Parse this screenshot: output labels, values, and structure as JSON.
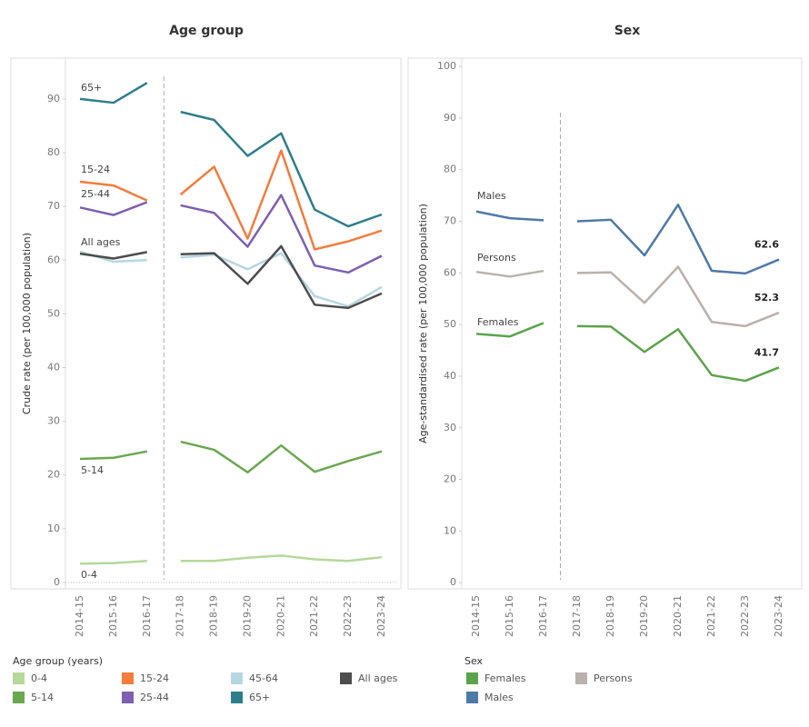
{
  "chart_data": [
    {
      "type": "line",
      "title": "Age group",
      "y_label": "Crude rate (per 100,000 population)",
      "legend_title": "Age group (years)",
      "break_after": "2016-17",
      "categories": [
        "2014-15",
        "2015-16",
        "2016-17",
        "2017-18",
        "2018-19",
        "2019-20",
        "2020-21",
        "2021-22",
        "2022-23",
        "2023-24"
      ],
      "ylim": [
        -1.2,
        97.6
      ],
      "yticks": [
        0,
        10,
        20,
        30,
        40,
        50,
        60,
        70,
        80,
        90
      ],
      "series": [
        {
          "name": "0-4",
          "color": "#b5d89b",
          "inline_label": true,
          "values": [
            3.5,
            3.6,
            4.0,
            4.0,
            4.0,
            4.6,
            5.0,
            4.3,
            4.0,
            4.7
          ]
        },
        {
          "name": "5-14",
          "color": "#6aa84f",
          "inline_label": true,
          "values": [
            23.0,
            23.2,
            24.4,
            26.2,
            24.7,
            20.5,
            25.5,
            20.6,
            22.6,
            24.4
          ]
        },
        {
          "name": "15-24",
          "color": "#f47c3c",
          "inline_label": true,
          "values": [
            74.6,
            73.9,
            71.1,
            72.2,
            77.4,
            64.0,
            80.4,
            62.0,
            63.5,
            65.5
          ]
        },
        {
          "name": "25-44",
          "color": "#7e5fb0",
          "inline_label": true,
          "values": [
            69.8,
            68.4,
            70.8,
            70.2,
            68.8,
            62.5,
            72.1,
            59.0,
            57.7,
            60.8
          ]
        },
        {
          "name": "45-64",
          "color": "#b6d7e0",
          "inline_label": false,
          "values": [
            61.6,
            59.7,
            60.0,
            60.5,
            61.0,
            58.3,
            61.3,
            53.3,
            51.4,
            55.0
          ]
        },
        {
          "name": "65+",
          "color": "#2e7d8c",
          "inline_label": true,
          "values": [
            90.0,
            89.3,
            93.0,
            87.6,
            86.1,
            79.4,
            83.6,
            69.4,
            66.3,
            68.5
          ]
        },
        {
          "name": "All ages",
          "color": "#4d4d4d",
          "inline_label": true,
          "values": [
            61.2,
            60.3,
            61.5,
            61.1,
            61.3,
            55.6,
            62.6,
            51.7,
            51.1,
            53.8
          ]
        }
      ]
    },
    {
      "type": "line",
      "title": "Sex",
      "y_label": "Age-standardised rate (per 100,000 population)",
      "legend_title": "Sex",
      "break_after": "2016-17",
      "label_last": true,
      "categories": [
        "2014-15",
        "2015-16",
        "2016-17",
        "2017-18",
        "2018-19",
        "2019-20",
        "2020-21",
        "2021-22",
        "2022-23",
        "2023-24"
      ],
      "ylim": [
        -1.2,
        101.6
      ],
      "yticks": [
        0,
        10,
        20,
        30,
        40,
        50,
        60,
        70,
        80,
        90,
        100
      ],
      "series": [
        {
          "name": "Females",
          "color": "#5ba34a",
          "inline_label": true,
          "values": [
            48.2,
            47.7,
            50.3,
            49.7,
            49.6,
            44.7,
            49.1,
            40.2,
            39.1,
            41.7
          ]
        },
        {
          "name": "Males",
          "color": "#4e79a7",
          "inline_label": true,
          "values": [
            71.9,
            70.6,
            70.2,
            70.0,
            70.3,
            63.4,
            73.2,
            60.4,
            59.9,
            62.6
          ]
        },
        {
          "name": "Persons",
          "color": "#bab0ac",
          "inline_label": true,
          "values": [
            60.2,
            59.3,
            60.4,
            60.0,
            60.1,
            54.2,
            61.2,
            50.5,
            49.7,
            52.3
          ]
        }
      ]
    }
  ]
}
